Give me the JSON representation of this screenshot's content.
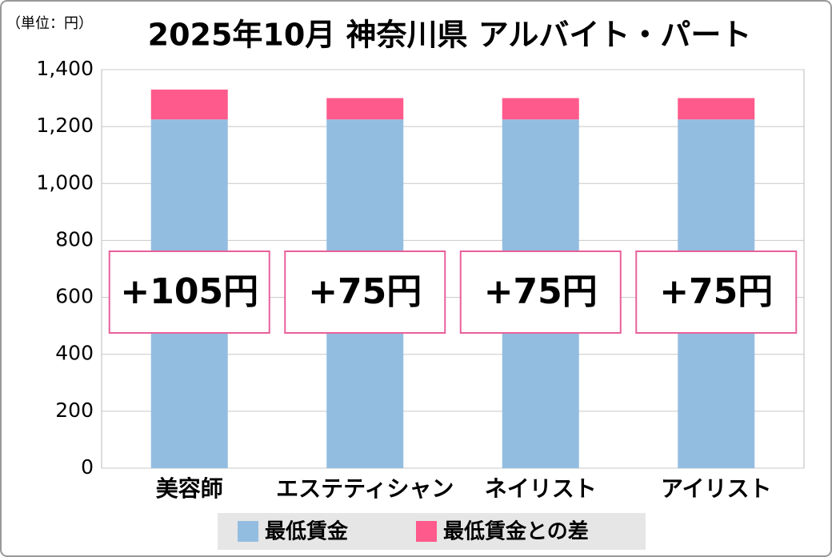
{
  "chart_data": {
    "type": "stacked_bar",
    "title": "2025年10月 神奈川県 アルバイト・パート",
    "unit_label": "（単位：円）",
    "categories": [
      "美容師",
      "エステティシャン",
      "ネイリスト",
      "アイリスト"
    ],
    "series": [
      {
        "name": "最低賃金",
        "color": "#93bde0",
        "values": [
          1225,
          1225,
          1225,
          1225
        ]
      },
      {
        "name": "最低賃金との差",
        "color": "#ff5a8c",
        "values": [
          105,
          75,
          75,
          75
        ],
        "value_labels": [
          "+105円",
          "+75円",
          "+75円",
          "+75円"
        ]
      }
    ],
    "ylim": [
      0,
      1400
    ],
    "yticks": [
      0,
      200,
      400,
      600,
      800,
      {
        "value": 1000,
        "label": "1,000"
      },
      {
        "value": 1200,
        "label": "1,200"
      },
      {
        "value": 1400,
        "label": "1,400"
      }
    ],
    "grid": true
  }
}
